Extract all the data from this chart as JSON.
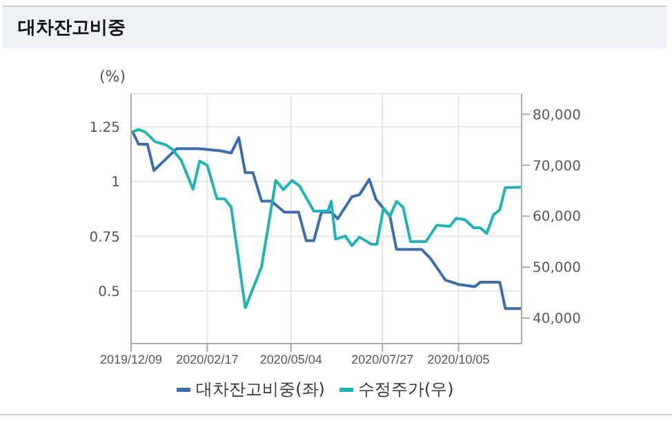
{
  "chart_data": {
    "type": "line",
    "title": "대차잔고비중",
    "ylabel": "(%)",
    "xlim": [
      "2019-12-09",
      "2020-12-02"
    ],
    "xticks": [
      {
        "value": "2019-12-09",
        "label": "2019/12/09"
      },
      {
        "value": "2020-02-17",
        "label": "2020/02/17"
      },
      {
        "value": "2020-05-04",
        "label": "2020/05/04"
      },
      {
        "value": "2020-07-27",
        "label": "2020/07/27"
      },
      {
        "value": "2020-10-05",
        "label": "2020/10/05"
      }
    ],
    "ylim": [
      0.26,
      1.4
    ],
    "yticks": [
      0.5,
      0.75,
      1,
      1.25
    ],
    "y2lim": [
      35000,
      84000
    ],
    "y2ticks": [
      {
        "value": 40000,
        "label": "40,000"
      },
      {
        "value": 50000,
        "label": "50,000"
      },
      {
        "value": 60000,
        "label": "60,000"
      },
      {
        "value": 70000,
        "label": "70,000"
      },
      {
        "value": 80000,
        "label": "80,000"
      }
    ],
    "grid": true,
    "legend": "bottom",
    "marker": "none",
    "line_style": "solid",
    "series": [
      {
        "name": "대차잔고비중(좌)",
        "color": "#3a6db0",
        "x": [
          "2019-12-10",
          "2019-12-16",
          "2019-12-24",
          "2019-12-30",
          "2020-01-20",
          "2020-01-27",
          "2020-02-09",
          "2020-02-29",
          "2020-03-10",
          "2020-03-17",
          "2020-03-23",
          "2020-03-30",
          "2020-04-07",
          "2020-04-16",
          "2020-04-28",
          "2020-05-11",
          "2020-05-18",
          "2020-05-25",
          "2020-06-01",
          "2020-06-10",
          "2020-06-16",
          "2020-06-29",
          "2020-07-06",
          "2020-07-15",
          "2020-07-21",
          "2020-08-03",
          "2020-08-09",
          "2020-09-01",
          "2020-09-09",
          "2020-09-23",
          "2020-10-05",
          "2020-10-20",
          "2020-10-25",
          "2020-11-07",
          "2020-11-12",
          "2020-11-17",
          "2020-12-02"
        ],
        "values": [
          1.23,
          1.17,
          1.17,
          1.05,
          1.15,
          1.15,
          1.15,
          1.14,
          1.13,
          1.2,
          1.04,
          1.04,
          0.91,
          0.91,
          0.86,
          0.86,
          0.73,
          0.73,
          0.86,
          0.86,
          0.83,
          0.93,
          0.94,
          1.01,
          0.92,
          0.84,
          0.69,
          0.69,
          0.65,
          0.55,
          0.53,
          0.52,
          0.54,
          0.54,
          0.54,
          0.42,
          0.42
        ]
      },
      {
        "name": "수정주가(우)",
        "color": "#1fb3b8",
        "axis": "y2",
        "x": [
          "2019-12-10",
          "2019-12-16",
          "2019-12-22",
          "2019-12-31",
          "2020-01-10",
          "2020-01-16",
          "2020-01-24",
          "2020-02-04",
          "2020-02-10",
          "2020-02-17",
          "2020-02-26",
          "2020-03-04",
          "2020-03-10",
          "2020-03-23",
          "2020-04-07",
          "2020-04-20",
          "2020-04-27",
          "2020-05-05",
          "2020-05-12",
          "2020-05-25",
          "2020-06-07",
          "2020-06-10",
          "2020-06-14",
          "2020-06-23",
          "2020-06-29",
          "2020-07-06",
          "2020-07-17",
          "2020-07-22",
          "2020-07-28",
          "2020-08-03",
          "2020-08-09",
          "2020-08-15",
          "2020-08-22",
          "2020-09-05",
          "2020-09-15",
          "2020-09-27",
          "2020-10-03",
          "2020-10-11",
          "2020-10-19",
          "2020-10-25",
          "2020-10-31",
          "2020-11-06",
          "2020-11-12",
          "2020-11-17",
          "2020-12-02"
        ],
        "values": [
          76500,
          77000,
          76500,
          74600,
          74000,
          73100,
          71000,
          65300,
          70800,
          70000,
          63400,
          63400,
          61800,
          42000,
          50100,
          67000,
          65200,
          67000,
          65900,
          61000,
          61000,
          62900,
          55500,
          56100,
          54200,
          55900,
          54500,
          54500,
          61600,
          60000,
          62900,
          61800,
          55000,
          55000,
          58200,
          58000,
          59600,
          59300,
          57700,
          57700,
          56600,
          60200,
          61300,
          65600,
          65700
        ]
      }
    ]
  }
}
